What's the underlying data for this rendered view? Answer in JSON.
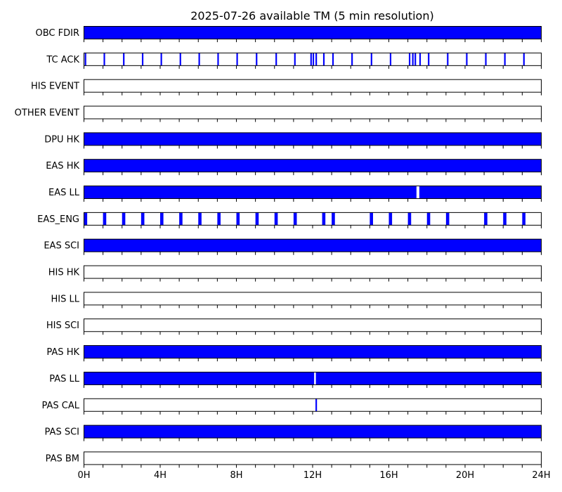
{
  "chart_data": {
    "type": "timeline",
    "title": "2025-07-26 available TM (5 min resolution)",
    "x_unit": "hours",
    "xlim": [
      0,
      24
    ],
    "x_ticks": [
      0,
      4,
      8,
      12,
      16,
      20,
      24
    ],
    "x_tick_labels": [
      "0H",
      "4H",
      "8H",
      "12H",
      "16H",
      "20H",
      "24H"
    ],
    "minor_tick_step_hours": 1,
    "fill_color": "#0000ff",
    "grid": false,
    "rows": [
      {
        "label": "OBC FDIR",
        "intervals": [
          [
            0,
            24
          ]
        ]
      },
      {
        "label": "TC ACK",
        "intervals": [
          [
            0.04,
            0.12
          ],
          [
            1.03,
            1.11
          ],
          [
            2.05,
            2.13
          ],
          [
            3.04,
            3.12
          ],
          [
            4.02,
            4.1
          ],
          [
            5.02,
            5.1
          ],
          [
            6.01,
            6.09
          ],
          [
            7.0,
            7.08
          ],
          [
            8.0,
            8.08
          ],
          [
            9.02,
            9.1
          ],
          [
            10.05,
            10.13
          ],
          [
            11.03,
            11.11
          ],
          [
            11.88,
            11.96
          ],
          [
            12.0,
            12.08
          ],
          [
            12.15,
            12.23
          ],
          [
            12.55,
            12.63
          ],
          [
            13.03,
            13.11
          ],
          [
            14.03,
            14.11
          ],
          [
            15.05,
            15.13
          ],
          [
            16.05,
            16.13
          ],
          [
            17.05,
            17.13
          ],
          [
            17.22,
            17.3
          ],
          [
            17.35,
            17.43
          ],
          [
            17.6,
            17.68
          ],
          [
            18.05,
            18.13
          ],
          [
            19.05,
            19.13
          ],
          [
            20.05,
            20.13
          ],
          [
            21.05,
            21.13
          ],
          [
            22.05,
            22.13
          ],
          [
            23.05,
            23.13
          ]
        ]
      },
      {
        "label": "HIS EVENT",
        "intervals": []
      },
      {
        "label": "OTHER EVENT",
        "intervals": []
      },
      {
        "label": "DPU HK",
        "intervals": [
          [
            0,
            24
          ]
        ]
      },
      {
        "label": "EAS HK",
        "intervals": [
          [
            0,
            24
          ]
        ]
      },
      {
        "label": "EAS LL",
        "intervals": [
          [
            0,
            17.45
          ],
          [
            17.6,
            24
          ]
        ]
      },
      {
        "label": "EAS_ENG",
        "intervals": [
          [
            0.0,
            0.17
          ],
          [
            1.0,
            1.17
          ],
          [
            2.0,
            2.17
          ],
          [
            3.0,
            3.17
          ],
          [
            4.0,
            4.17
          ],
          [
            5.0,
            5.17
          ],
          [
            6.0,
            6.17
          ],
          [
            7.0,
            7.17
          ],
          [
            8.0,
            8.17
          ],
          [
            9.0,
            9.17
          ],
          [
            10.0,
            10.17
          ],
          [
            11.0,
            11.17
          ],
          [
            12.5,
            12.67
          ],
          [
            13.0,
            13.17
          ],
          [
            15.0,
            15.17
          ],
          [
            16.0,
            16.17
          ],
          [
            17.0,
            17.17
          ],
          [
            18.0,
            18.17
          ],
          [
            19.0,
            19.17
          ],
          [
            21.0,
            21.17
          ],
          [
            22.0,
            22.17
          ],
          [
            23.0,
            23.17
          ]
        ]
      },
      {
        "label": "EAS SCI",
        "intervals": [
          [
            0,
            24
          ]
        ]
      },
      {
        "label": "HIS HK",
        "intervals": []
      },
      {
        "label": "HIS LL",
        "intervals": []
      },
      {
        "label": "HIS SCI",
        "intervals": []
      },
      {
        "label": "PAS HK",
        "intervals": [
          [
            0,
            24
          ]
        ]
      },
      {
        "label": "PAS LL",
        "intervals": [
          [
            0,
            12.08
          ],
          [
            12.17,
            24
          ]
        ]
      },
      {
        "label": "PAS CAL",
        "intervals": [
          [
            12.15,
            12.23
          ]
        ]
      },
      {
        "label": "PAS SCI",
        "intervals": [
          [
            0,
            24
          ]
        ]
      },
      {
        "label": "PAS BM",
        "intervals": []
      }
    ]
  }
}
